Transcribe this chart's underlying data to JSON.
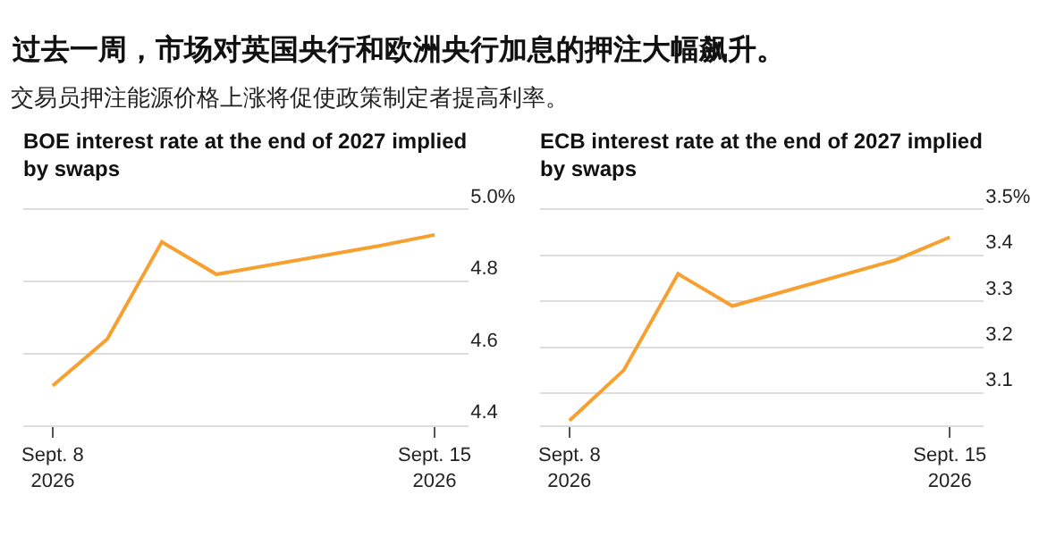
{
  "chart_data": [
    {
      "type": "other",
      "title": "过去一周，市场对英国央行和欧洲央行加息的押注大幅飙升。",
      "subtitle": "交易员押注能源价格上涨将促使政策制定者提高利率。"
    },
    {
      "type": "line",
      "title": "BOE interest rate at the end of 2027 implied by swaps",
      "x": [
        "2026-09-08",
        "2026-09-09",
        "2026-09-10",
        "2026-09-11",
        "2026-09-14",
        "2026-09-15"
      ],
      "series": [
        {
          "color": "#f7a030",
          "values": [
            4.51,
            4.64,
            4.91,
            4.82,
            4.9,
            4.93
          ]
        }
      ],
      "xlim": [
        "2026-09-07T11:00",
        "2026-09-15T15:00"
      ],
      "xticks": [
        {
          "value": "2026-09-08",
          "label": "Sept. 8\n2026"
        },
        {
          "value": "2026-09-15",
          "label": "Sept. 15\n2026"
        }
      ],
      "ylim": [
        4.4,
        5.0
      ],
      "yticks": [
        4.4,
        4.6,
        4.8,
        {
          "value": 5.0,
          "label": "5.0%"
        }
      ],
      "grid": "y",
      "marker": "none",
      "line_style": "solid"
    },
    {
      "type": "line",
      "title": "ECB interest rate at the end of 2027 implied by swaps",
      "x": [
        "2026-09-08",
        "2026-09-09",
        "2026-09-10",
        "2026-09-11",
        "2026-09-14",
        "2026-09-15"
      ],
      "series": [
        {
          "color": "#f7a030",
          "values": [
            3.04,
            3.15,
            3.36,
            3.29,
            3.39,
            3.44
          ]
        }
      ],
      "xlim": [
        "2026-09-07T11:00",
        "2026-09-15T15:00"
      ],
      "xticks": [
        {
          "value": "2026-09-08",
          "label": "Sept. 8\n2026"
        },
        {
          "value": "2026-09-15",
          "label": "Sept. 15\n2026"
        }
      ],
      "ylim": [
        3.03,
        3.5
      ],
      "yticks": [
        3.1,
        3.2,
        3.3,
        3.4,
        {
          "value": 3.5,
          "label": "3.5%"
        }
      ],
      "grid": "y",
      "marker": "none",
      "line_style": "solid"
    }
  ]
}
